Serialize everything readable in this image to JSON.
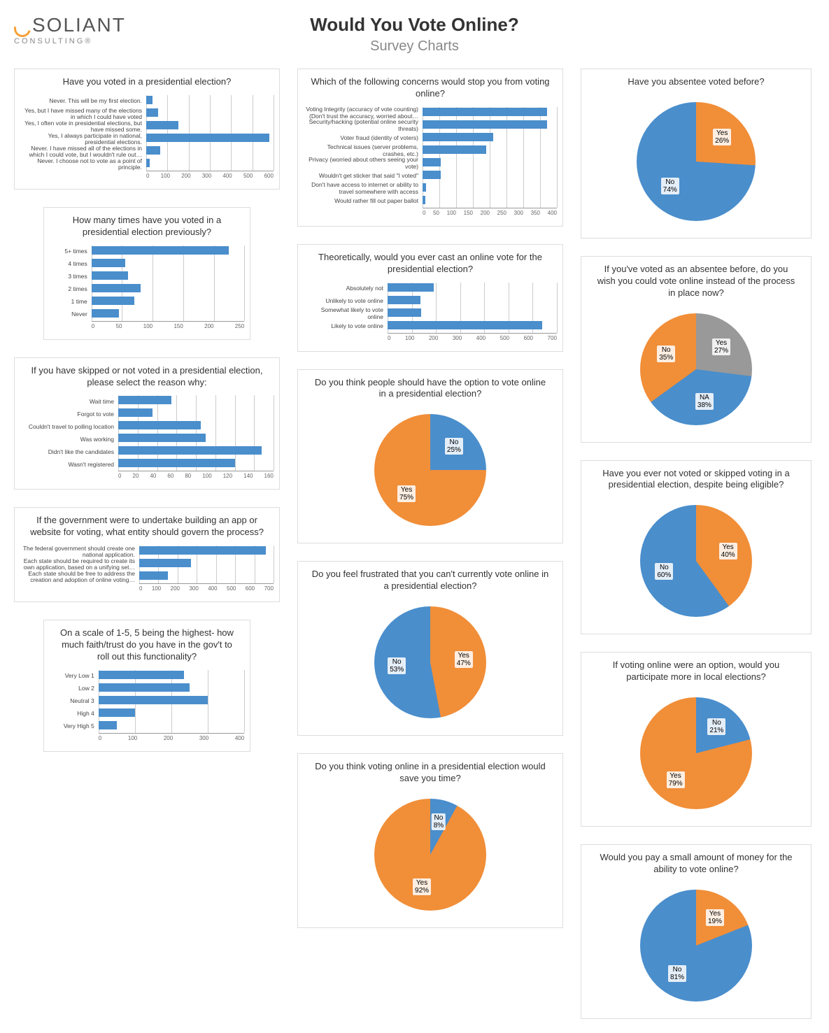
{
  "colors": {
    "bar_blue": "#4a8ecc",
    "pie_blue": "#4a8ecc",
    "pie_orange": "#f18e38",
    "pie_gray": "#999999",
    "grid": "#cccccc",
    "axis": "#999999"
  },
  "header": {
    "logo_main": "SOLIANT",
    "logo_sub": "CONSULTING®",
    "title": "Would You Vote Online?",
    "subtitle": "Survey Charts"
  },
  "bar_charts": {
    "c1": {
      "title": "Have you voted in a presidential election?",
      "label_width": 180,
      "xmax": 600,
      "xstep": 100,
      "items": [
        {
          "label": "Never. This will be my first election.",
          "value": 30
        },
        {
          "label": "Yes, but I have missed many of the elections in which I could have voted",
          "value": 55
        },
        {
          "label": "Yes, I often vote in presidential elections, but have missed some.",
          "value": 150
        },
        {
          "label": "Yes, I always participate in national, presidential elections.",
          "value": 580
        },
        {
          "label": "Never. I have missed all of the elections in which I could vote, but I wouldn't rule out…",
          "value": 65
        },
        {
          "label": "Never. I choose not to vote as a point of principle.",
          "value": 18
        }
      ]
    },
    "c2": {
      "title": "How many times have you voted in a presidential election previously?",
      "label_width": 60,
      "xmax": 250,
      "xstep": 50,
      "items": [
        {
          "label": "5+ times",
          "value": 225
        },
        {
          "label": "4 times",
          "value": 55
        },
        {
          "label": "3 times",
          "value": 60
        },
        {
          "label": "2 times",
          "value": 80
        },
        {
          "label": "1 time",
          "value": 70
        },
        {
          "label": "Never",
          "value": 45
        }
      ]
    },
    "c3": {
      "title": "If you have skipped or not voted in a presidential election, please select the reason why:",
      "label_width": 140,
      "xmax": 160,
      "xstep": 20,
      "items": [
        {
          "label": "Wait time",
          "value": 55
        },
        {
          "label": "Forgot to vote",
          "value": 35
        },
        {
          "label": "Couldn't travel to polling location",
          "value": 85
        },
        {
          "label": "Was working",
          "value": 90
        },
        {
          "label": "Didn't like the candidates",
          "value": 148
        },
        {
          "label": "Wasn't registered",
          "value": 120
        }
      ]
    },
    "c4": {
      "title": "If the government were to undertake building an app or website for voting, what entity should govern the process?",
      "label_width": 170,
      "xmax": 700,
      "xstep": 100,
      "items": [
        {
          "label": "The federal government should create one national application.",
          "value": 660
        },
        {
          "label": "Each state should be required to create its own application, based on a unifying set…",
          "value": 270
        },
        {
          "label": "Each state should be free to address the creation and adoption of online voting…",
          "value": 150
        }
      ]
    },
    "c5": {
      "title": "On a scale of 1-5, 5 being the highest- how much faith/trust do you have in the gov't to roll out this functionality?",
      "label_width": 70,
      "xmax": 400,
      "xstep": 100,
      "items": [
        {
          "label": "Very Low 1",
          "value": 235
        },
        {
          "label": "Low 2",
          "value": 250
        },
        {
          "label": "Neutral 3",
          "value": 300
        },
        {
          "label": "High 4",
          "value": 100
        },
        {
          "label": "Very High 5",
          "value": 50
        }
      ]
    },
    "c6": {
      "title": "Which of the following concerns would stop you from voting online?",
      "label_width": 170,
      "xmax": 400,
      "xstep": 50,
      "items": [
        {
          "label": "Voting Integrity (accuracy of vote counting) (Don't trust the accuracy, worried about…",
          "value": 370
        },
        {
          "label": "Security/hacking (potential online security threats)",
          "value": 370
        },
        {
          "label": "Voter fraud (identity of voters)",
          "value": 210
        },
        {
          "label": "Technical issues (server problems, crashes, etc.)",
          "value": 190
        },
        {
          "label": "Privacy (worried about others seeing your vote)",
          "value": 55
        },
        {
          "label": "Wouldn't get sticker that said \"I voted\"",
          "value": 55
        },
        {
          "label": "Don't have access to internet or ability to travel somewhere with access",
          "value": 10
        },
        {
          "label": "Would rather fill out paper ballot",
          "value": 8
        }
      ]
    },
    "c7": {
      "title": "Theoretically, would you ever cast an online vote for the presidential election?",
      "label_width": 120,
      "xmax": 700,
      "xstep": 100,
      "items": [
        {
          "label": "Absolutely not",
          "value": 190
        },
        {
          "label": "Unlikely to vote online",
          "value": 135
        },
        {
          "label": "Somewhat likely to vote online",
          "value": 140
        },
        {
          "label": "Likely to vote online",
          "value": 640
        }
      ]
    }
  },
  "pie_charts": {
    "p1": {
      "title": "Do you think people should have the option to vote online in a presidential election?",
      "size": 160,
      "slices": [
        {
          "label": "No",
          "pct": 25,
          "color": "#4a8ecc"
        },
        {
          "label": "Yes",
          "pct": 75,
          "color": "#f18e38"
        }
      ]
    },
    "p2": {
      "title": "Do you feel frustrated that you can't currently vote online in a presidential election?",
      "size": 160,
      "slices": [
        {
          "label": "Yes",
          "pct": 47,
          "color": "#f18e38"
        },
        {
          "label": "No",
          "pct": 53,
          "color": "#4a8ecc"
        }
      ]
    },
    "p3": {
      "title": "Do you think voting online in a presidential election would save you time?",
      "size": 160,
      "slices": [
        {
          "label": "No",
          "pct": 8,
          "color": "#4a8ecc"
        },
        {
          "label": "Yes",
          "pct": 92,
          "color": "#f18e38"
        }
      ]
    },
    "p4": {
      "title": "Have you absentee voted before?",
      "size": 170,
      "slices": [
        {
          "label": "Yes",
          "pct": 26,
          "color": "#f18e38"
        },
        {
          "label": "No",
          "pct": 74,
          "color": "#4a8ecc"
        }
      ]
    },
    "p5": {
      "title": "If you've voted as an absentee before, do you wish you could vote online instead of the process in place now?",
      "size": 160,
      "slices": [
        {
          "label": "Yes",
          "pct": 27,
          "color": "#999999"
        },
        {
          "label": "NA",
          "pct": 38,
          "color": "#4a8ecc"
        },
        {
          "label": "No",
          "pct": 35,
          "color": "#f18e38"
        }
      ]
    },
    "p6": {
      "title": "Have you ever not voted or skipped voting in a presidential election, despite being eligible?",
      "size": 160,
      "slices": [
        {
          "label": "Yes",
          "pct": 40,
          "color": "#f18e38"
        },
        {
          "label": "No",
          "pct": 60,
          "color": "#4a8ecc"
        }
      ]
    },
    "p7": {
      "title": "If voting online were an option, would you participate more in local elections?",
      "size": 160,
      "slices": [
        {
          "label": "No",
          "pct": 21,
          "color": "#4a8ecc"
        },
        {
          "label": "Yes",
          "pct": 79,
          "color": "#f18e38"
        }
      ]
    },
    "p8": {
      "title": "Would you pay a small amount of money for the ability to vote online?",
      "size": 160,
      "slices": [
        {
          "label": "Yes",
          "pct": 19,
          "color": "#f18e38"
        },
        {
          "label": "No",
          "pct": 81,
          "color": "#4a8ecc"
        }
      ]
    }
  },
  "layout": {
    "col1": [
      {
        "type": "bar",
        "key": "c1"
      },
      {
        "type": "bar",
        "key": "c2",
        "narrow": true
      },
      {
        "type": "bar",
        "key": "c3"
      },
      {
        "type": "bar",
        "key": "c4"
      },
      {
        "type": "bar",
        "key": "c5",
        "narrow": true
      }
    ],
    "col2": [
      {
        "type": "bar",
        "key": "c6"
      },
      {
        "type": "bar",
        "key": "c7"
      },
      {
        "type": "pie",
        "key": "p1"
      },
      {
        "type": "pie",
        "key": "p2"
      },
      {
        "type": "pie",
        "key": "p3"
      }
    ],
    "col3": [
      {
        "type": "pie",
        "key": "p4"
      },
      {
        "type": "pie",
        "key": "p5"
      },
      {
        "type": "pie",
        "key": "p6"
      },
      {
        "type": "pie",
        "key": "p7"
      },
      {
        "type": "pie",
        "key": "p8"
      }
    ]
  }
}
